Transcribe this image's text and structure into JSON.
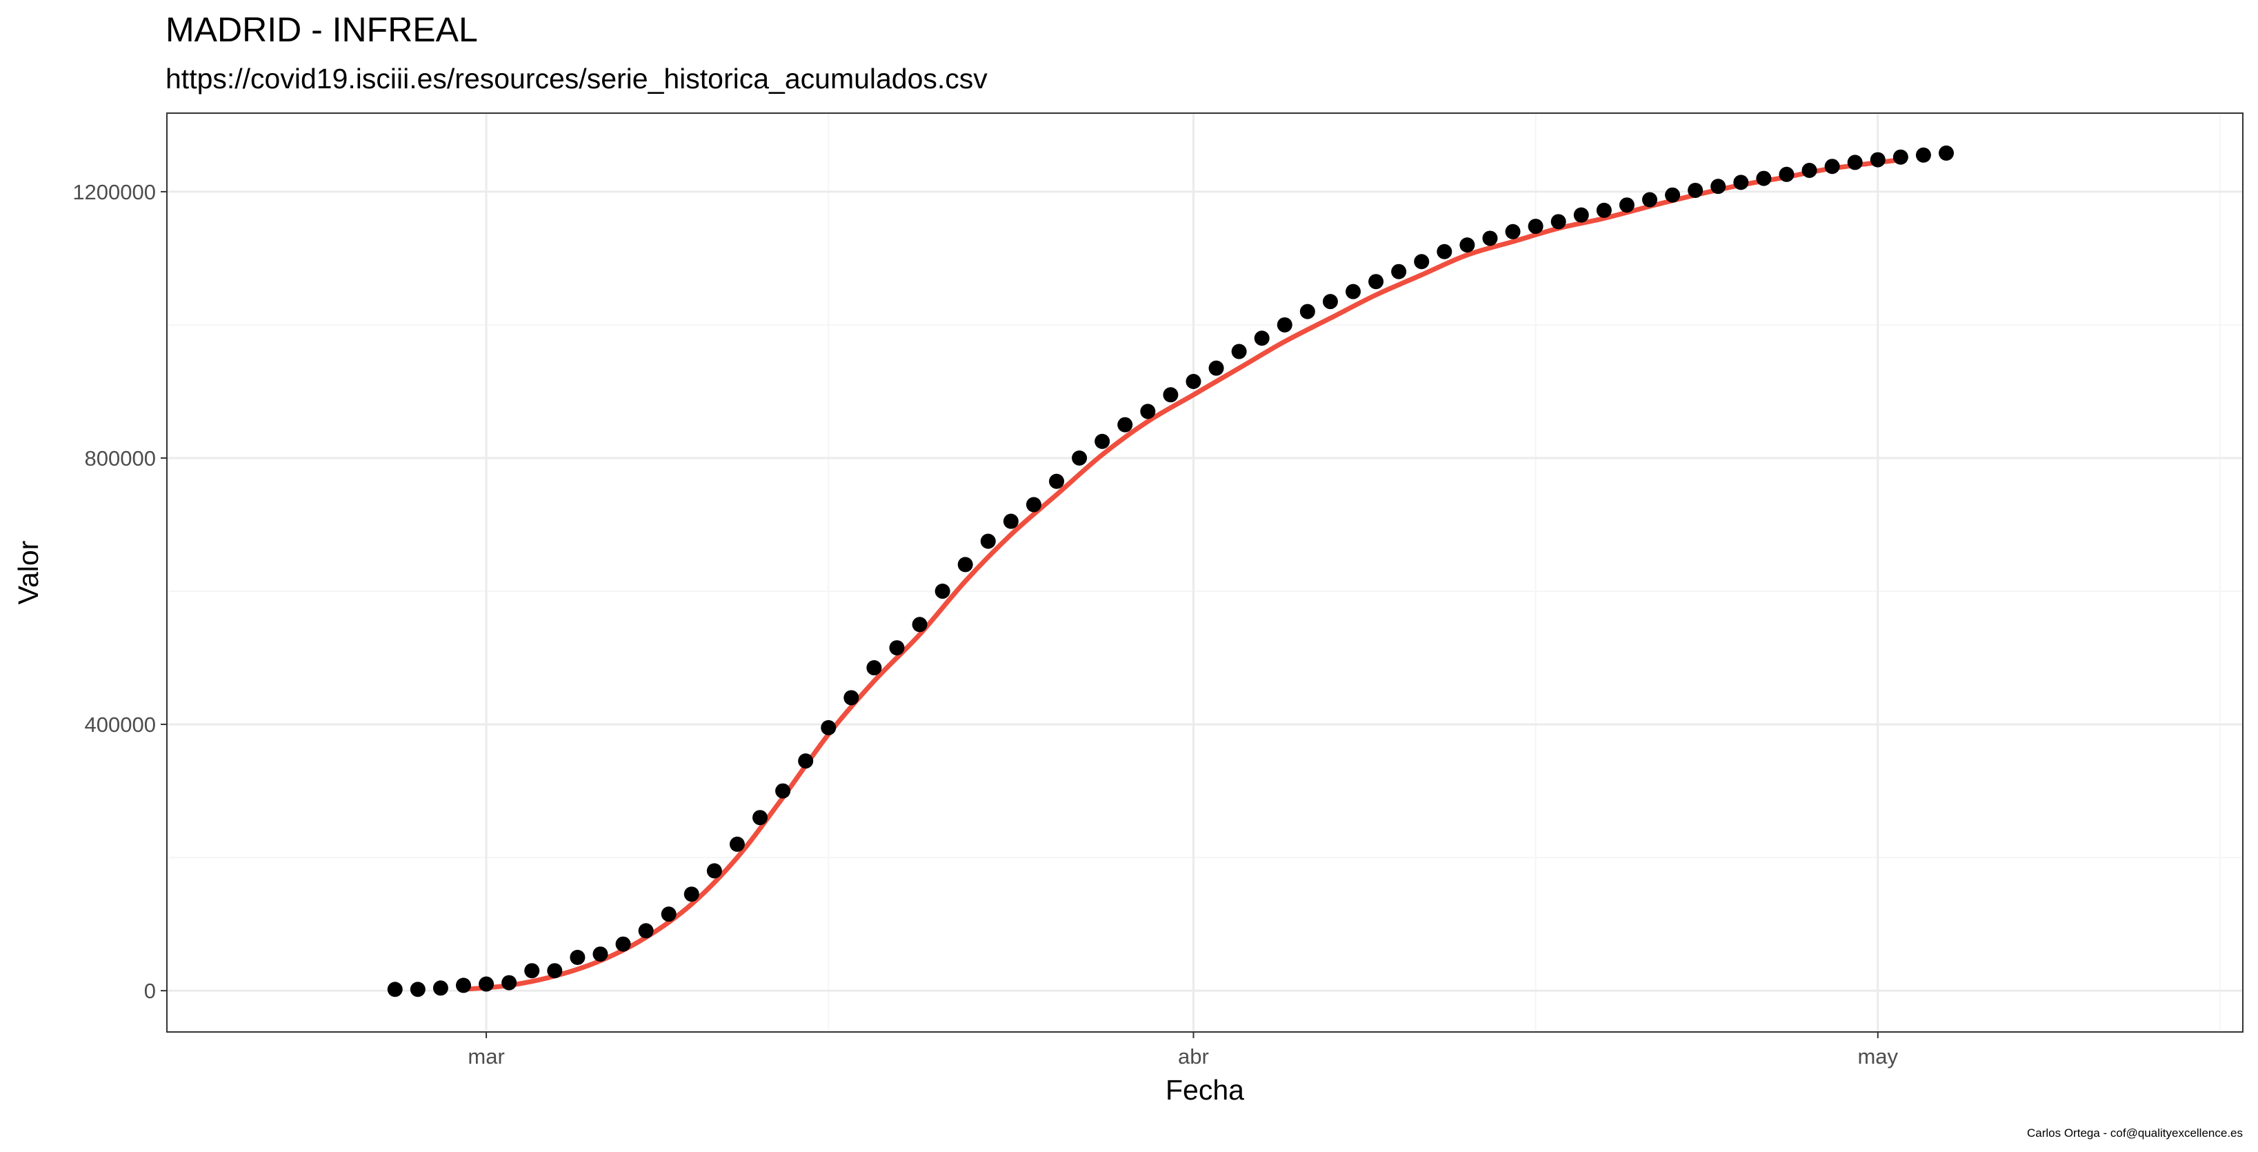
{
  "chart_data": {
    "type": "scatter",
    "title": "MADRID - INFREAL",
    "subtitle": "https://covid19.isciii.es/resources/serie_historica_acumulados.csv",
    "caption": "Carlos Ortega - cof@qualityexcellence.es",
    "xlabel": "Fecha",
    "ylabel": "Valor",
    "x_tick_labels": [
      {
        "date": "2020-03-01",
        "label": "mar"
      },
      {
        "date": "2020-04-01",
        "label": "abr"
      },
      {
        "date": "2020-05-01",
        "label": "may"
      }
    ],
    "x_minor_gridlines": [
      "2020-03-16",
      "2020-04-16",
      "2020-05-16"
    ],
    "xlim": [
      "2020-02-16",
      "2020-05-17"
    ],
    "y_ticks": [
      0,
      400000,
      800000,
      1200000
    ],
    "y_tick_labels": [
      "0",
      "400000",
      "800000",
      "1200000"
    ],
    "y_minor_gridlines": [
      200000,
      600000,
      1000000
    ],
    "ylim": [
      -62000,
      1318000
    ],
    "grid": true,
    "legend": "none",
    "colors": {
      "points": "#000000",
      "smooth_line": "#f04e3e",
      "grid_major": "#ebebeb",
      "grid_minor": "#f5f5f5",
      "panel_border": "#333333"
    },
    "series": [
      {
        "type": "points",
        "x": [
          "2020-02-26",
          "2020-02-27",
          "2020-02-28",
          "2020-02-29",
          "2020-03-01",
          "2020-03-02",
          "2020-03-03",
          "2020-03-04",
          "2020-03-05",
          "2020-03-06",
          "2020-03-07",
          "2020-03-08",
          "2020-03-09",
          "2020-03-10",
          "2020-03-11",
          "2020-03-12",
          "2020-03-13",
          "2020-03-14",
          "2020-03-15",
          "2020-03-16",
          "2020-03-17",
          "2020-03-18",
          "2020-03-19",
          "2020-03-20",
          "2020-03-21",
          "2020-03-22",
          "2020-03-23",
          "2020-03-24",
          "2020-03-25",
          "2020-03-26",
          "2020-03-27",
          "2020-03-28",
          "2020-03-29",
          "2020-03-30",
          "2020-03-31",
          "2020-04-01",
          "2020-04-02",
          "2020-04-03",
          "2020-04-04",
          "2020-04-05",
          "2020-04-06",
          "2020-04-07",
          "2020-04-08",
          "2020-04-09",
          "2020-04-10",
          "2020-04-11",
          "2020-04-12",
          "2020-04-13",
          "2020-04-14",
          "2020-04-15",
          "2020-04-16",
          "2020-04-17",
          "2020-04-18",
          "2020-04-19",
          "2020-04-20",
          "2020-04-21",
          "2020-04-22",
          "2020-04-23",
          "2020-04-24",
          "2020-04-25",
          "2020-04-26",
          "2020-04-27",
          "2020-04-28",
          "2020-04-29",
          "2020-04-30",
          "2020-05-01",
          "2020-05-02",
          "2020-05-03",
          "2020-05-04"
        ],
        "y": [
          2000,
          2000,
          4000,
          8000,
          10000,
          12000,
          30000,
          30000,
          50000,
          55000,
          70000,
          90000,
          115000,
          145000,
          180000,
          220000,
          260000,
          300000,
          345000,
          395000,
          440000,
          485000,
          515000,
          550000,
          600000,
          640000,
          675000,
          705000,
          730000,
          765000,
          800000,
          825000,
          850000,
          870000,
          895000,
          915000,
          935000,
          960000,
          980000,
          1000000,
          1020000,
          1035000,
          1050000,
          1065000,
          1080000,
          1095000,
          1110000,
          1120000,
          1130000,
          1140000,
          1148000,
          1155000,
          1165000,
          1172000,
          1180000,
          1188000,
          1195000,
          1202000,
          1208000,
          1214000,
          1220000,
          1226000,
          1232000,
          1238000,
          1244000,
          1248000,
          1252000,
          1255000,
          1258000
        ]
      },
      {
        "type": "smooth",
        "x": [
          "2020-02-29",
          "2020-03-02",
          "2020-03-04",
          "2020-03-06",
          "2020-03-08",
          "2020-03-10",
          "2020-03-12",
          "2020-03-14",
          "2020-03-16",
          "2020-03-18",
          "2020-03-20",
          "2020-03-22",
          "2020-03-24",
          "2020-03-26",
          "2020-03-28",
          "2020-03-30",
          "2020-04-01",
          "2020-04-03",
          "2020-04-05",
          "2020-04-07",
          "2020-04-09",
          "2020-04-11",
          "2020-04-13",
          "2020-04-15",
          "2020-04-17",
          "2020-04-19",
          "2020-04-21",
          "2020-04-23",
          "2020-04-25",
          "2020-04-27",
          "2020-04-29",
          "2020-05-02"
        ],
        "y": [
          2000,
          8000,
          22000,
          45000,
          80000,
          130000,
          200000,
          290000,
          385000,
          465000,
          535000,
          615000,
          685000,
          745000,
          805000,
          855000,
          895000,
          935000,
          975000,
          1010000,
          1045000,
          1075000,
          1105000,
          1125000,
          1145000,
          1160000,
          1178000,
          1195000,
          1210000,
          1222000,
          1235000,
          1248000
        ]
      }
    ]
  }
}
